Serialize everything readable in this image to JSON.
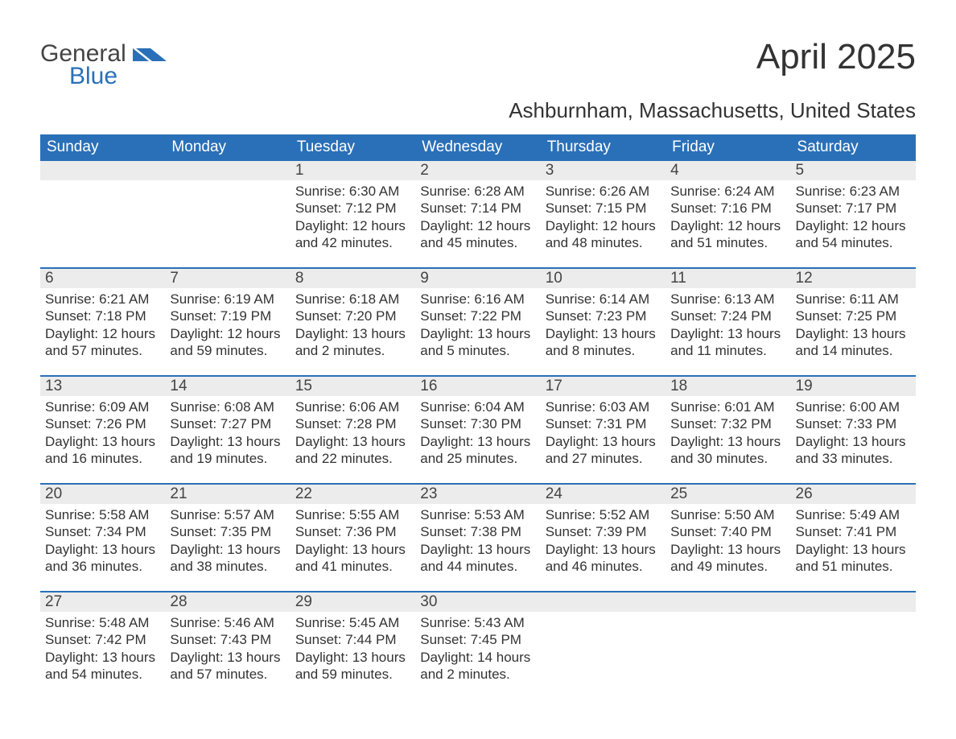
{
  "brand": {
    "part1": "General",
    "part2": "Blue"
  },
  "title": "April 2025",
  "subtitle": "Ashburnham, Massachusetts, United States",
  "colors": {
    "header_bg": "#2a70b8",
    "header_fg": "#ffffff",
    "daynum_bg": "#ececec",
    "text": "#333333",
    "rule": "#2a70b8"
  },
  "fonts": {
    "title_size": 44,
    "subtitle_size": 26,
    "header_size": 19,
    "daynum_size": 19,
    "body_size": 17
  },
  "day_headers": [
    "Sunday",
    "Monday",
    "Tuesday",
    "Wednesday",
    "Thursday",
    "Friday",
    "Saturday"
  ],
  "weeks": [
    [
      {
        "n": "",
        "sunrise": "",
        "sunset": "",
        "dl1": "",
        "dl2": ""
      },
      {
        "n": "",
        "sunrise": "",
        "sunset": "",
        "dl1": "",
        "dl2": ""
      },
      {
        "n": "1",
        "sunrise": "Sunrise: 6:30 AM",
        "sunset": "Sunset: 7:12 PM",
        "dl1": "Daylight: 12 hours",
        "dl2": "and 42 minutes."
      },
      {
        "n": "2",
        "sunrise": "Sunrise: 6:28 AM",
        "sunset": "Sunset: 7:14 PM",
        "dl1": "Daylight: 12 hours",
        "dl2": "and 45 minutes."
      },
      {
        "n": "3",
        "sunrise": "Sunrise: 6:26 AM",
        "sunset": "Sunset: 7:15 PM",
        "dl1": "Daylight: 12 hours",
        "dl2": "and 48 minutes."
      },
      {
        "n": "4",
        "sunrise": "Sunrise: 6:24 AM",
        "sunset": "Sunset: 7:16 PM",
        "dl1": "Daylight: 12 hours",
        "dl2": "and 51 minutes."
      },
      {
        "n": "5",
        "sunrise": "Sunrise: 6:23 AM",
        "sunset": "Sunset: 7:17 PM",
        "dl1": "Daylight: 12 hours",
        "dl2": "and 54 minutes."
      }
    ],
    [
      {
        "n": "6",
        "sunrise": "Sunrise: 6:21 AM",
        "sunset": "Sunset: 7:18 PM",
        "dl1": "Daylight: 12 hours",
        "dl2": "and 57 minutes."
      },
      {
        "n": "7",
        "sunrise": "Sunrise: 6:19 AM",
        "sunset": "Sunset: 7:19 PM",
        "dl1": "Daylight: 12 hours",
        "dl2": "and 59 minutes."
      },
      {
        "n": "8",
        "sunrise": "Sunrise: 6:18 AM",
        "sunset": "Sunset: 7:20 PM",
        "dl1": "Daylight: 13 hours",
        "dl2": "and 2 minutes."
      },
      {
        "n": "9",
        "sunrise": "Sunrise: 6:16 AM",
        "sunset": "Sunset: 7:22 PM",
        "dl1": "Daylight: 13 hours",
        "dl2": "and 5 minutes."
      },
      {
        "n": "10",
        "sunrise": "Sunrise: 6:14 AM",
        "sunset": "Sunset: 7:23 PM",
        "dl1": "Daylight: 13 hours",
        "dl2": "and 8 minutes."
      },
      {
        "n": "11",
        "sunrise": "Sunrise: 6:13 AM",
        "sunset": "Sunset: 7:24 PM",
        "dl1": "Daylight: 13 hours",
        "dl2": "and 11 minutes."
      },
      {
        "n": "12",
        "sunrise": "Sunrise: 6:11 AM",
        "sunset": "Sunset: 7:25 PM",
        "dl1": "Daylight: 13 hours",
        "dl2": "and 14 minutes."
      }
    ],
    [
      {
        "n": "13",
        "sunrise": "Sunrise: 6:09 AM",
        "sunset": "Sunset: 7:26 PM",
        "dl1": "Daylight: 13 hours",
        "dl2": "and 16 minutes."
      },
      {
        "n": "14",
        "sunrise": "Sunrise: 6:08 AM",
        "sunset": "Sunset: 7:27 PM",
        "dl1": "Daylight: 13 hours",
        "dl2": "and 19 minutes."
      },
      {
        "n": "15",
        "sunrise": "Sunrise: 6:06 AM",
        "sunset": "Sunset: 7:28 PM",
        "dl1": "Daylight: 13 hours",
        "dl2": "and 22 minutes."
      },
      {
        "n": "16",
        "sunrise": "Sunrise: 6:04 AM",
        "sunset": "Sunset: 7:30 PM",
        "dl1": "Daylight: 13 hours",
        "dl2": "and 25 minutes."
      },
      {
        "n": "17",
        "sunrise": "Sunrise: 6:03 AM",
        "sunset": "Sunset: 7:31 PM",
        "dl1": "Daylight: 13 hours",
        "dl2": "and 27 minutes."
      },
      {
        "n": "18",
        "sunrise": "Sunrise: 6:01 AM",
        "sunset": "Sunset: 7:32 PM",
        "dl1": "Daylight: 13 hours",
        "dl2": "and 30 minutes."
      },
      {
        "n": "19",
        "sunrise": "Sunrise: 6:00 AM",
        "sunset": "Sunset: 7:33 PM",
        "dl1": "Daylight: 13 hours",
        "dl2": "and 33 minutes."
      }
    ],
    [
      {
        "n": "20",
        "sunrise": "Sunrise: 5:58 AM",
        "sunset": "Sunset: 7:34 PM",
        "dl1": "Daylight: 13 hours",
        "dl2": "and 36 minutes."
      },
      {
        "n": "21",
        "sunrise": "Sunrise: 5:57 AM",
        "sunset": "Sunset: 7:35 PM",
        "dl1": "Daylight: 13 hours",
        "dl2": "and 38 minutes."
      },
      {
        "n": "22",
        "sunrise": "Sunrise: 5:55 AM",
        "sunset": "Sunset: 7:36 PM",
        "dl1": "Daylight: 13 hours",
        "dl2": "and 41 minutes."
      },
      {
        "n": "23",
        "sunrise": "Sunrise: 5:53 AM",
        "sunset": "Sunset: 7:38 PM",
        "dl1": "Daylight: 13 hours",
        "dl2": "and 44 minutes."
      },
      {
        "n": "24",
        "sunrise": "Sunrise: 5:52 AM",
        "sunset": "Sunset: 7:39 PM",
        "dl1": "Daylight: 13 hours",
        "dl2": "and 46 minutes."
      },
      {
        "n": "25",
        "sunrise": "Sunrise: 5:50 AM",
        "sunset": "Sunset: 7:40 PM",
        "dl1": "Daylight: 13 hours",
        "dl2": "and 49 minutes."
      },
      {
        "n": "26",
        "sunrise": "Sunrise: 5:49 AM",
        "sunset": "Sunset: 7:41 PM",
        "dl1": "Daylight: 13 hours",
        "dl2": "and 51 minutes."
      }
    ],
    [
      {
        "n": "27",
        "sunrise": "Sunrise: 5:48 AM",
        "sunset": "Sunset: 7:42 PM",
        "dl1": "Daylight: 13 hours",
        "dl2": "and 54 minutes."
      },
      {
        "n": "28",
        "sunrise": "Sunrise: 5:46 AM",
        "sunset": "Sunset: 7:43 PM",
        "dl1": "Daylight: 13 hours",
        "dl2": "and 57 minutes."
      },
      {
        "n": "29",
        "sunrise": "Sunrise: 5:45 AM",
        "sunset": "Sunset: 7:44 PM",
        "dl1": "Daylight: 13 hours",
        "dl2": "and 59 minutes."
      },
      {
        "n": "30",
        "sunrise": "Sunrise: 5:43 AM",
        "sunset": "Sunset: 7:45 PM",
        "dl1": "Daylight: 14 hours",
        "dl2": "and 2 minutes."
      },
      {
        "n": "",
        "sunrise": "",
        "sunset": "",
        "dl1": "",
        "dl2": ""
      },
      {
        "n": "",
        "sunrise": "",
        "sunset": "",
        "dl1": "",
        "dl2": ""
      },
      {
        "n": "",
        "sunrise": "",
        "sunset": "",
        "dl1": "",
        "dl2": ""
      }
    ]
  ]
}
